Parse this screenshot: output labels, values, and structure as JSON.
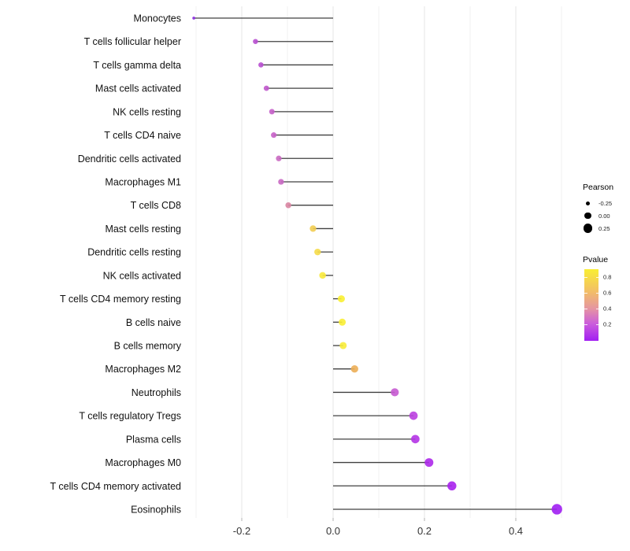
{
  "chart_data": {
    "type": "scatter",
    "variant": "horizontal-lollipop",
    "title": "",
    "xlabel": "",
    "ylabel": "",
    "xlim": [
      -0.33,
      0.52
    ],
    "x_major_ticks": [
      -0.2,
      0.0,
      0.2,
      0.4
    ],
    "x_major_tick_labels": [
      "-0.2",
      "0.0",
      "0.2",
      "0.4"
    ],
    "x_minor_ticks": [
      -0.3,
      -0.1,
      0.1,
      0.3,
      0.5
    ],
    "baseline_x": 0.0,
    "grid": true,
    "legend_position": "right",
    "points": [
      {
        "label": "Monocytes",
        "pearson": -0.305,
        "pvalue": 0.04,
        "color": "#8b2be0"
      },
      {
        "label": "T cells follicular helper",
        "pearson": -0.17,
        "pvalue": 0.27,
        "color": "#b84fd0"
      },
      {
        "label": "T cells gamma delta",
        "pearson": -0.158,
        "pvalue": 0.27,
        "color": "#b84fd0"
      },
      {
        "label": "Mast cells activated",
        "pearson": -0.146,
        "pvalue": 0.3,
        "color": "#c058cc"
      },
      {
        "label": "NK cells resting",
        "pearson": -0.134,
        "pvalue": 0.33,
        "color": "#c55fc9"
      },
      {
        "label": "T cells CD4 naive",
        "pearson": -0.13,
        "pvalue": 0.34,
        "color": "#c762c8"
      },
      {
        "label": "Dendritic cells activated",
        "pearson": -0.119,
        "pvalue": 0.36,
        "color": "#ca6ac2"
      },
      {
        "label": "Macrophages M1",
        "pearson": -0.114,
        "pvalue": 0.36,
        "color": "#c968c3"
      },
      {
        "label": "T cells CD8",
        "pearson": -0.098,
        "pvalue": 0.47,
        "color": "#d985a2"
      },
      {
        "label": "Mast cells resting",
        "pearson": -0.044,
        "pvalue": 0.66,
        "color": "#f2cd52"
      },
      {
        "label": "Dendritic cells resting",
        "pearson": -0.034,
        "pvalue": 0.72,
        "color": "#f5dc49"
      },
      {
        "label": "NK cells activated",
        "pearson": -0.023,
        "pvalue": 0.8,
        "color": "#f8e93c"
      },
      {
        "label": "T cells CD4 memory resting",
        "pearson": 0.018,
        "pvalue": 0.86,
        "color": "#f9ef32"
      },
      {
        "label": "B cells naive",
        "pearson": 0.02,
        "pvalue": 0.85,
        "color": "#f9ee34"
      },
      {
        "label": "B cells memory",
        "pearson": 0.022,
        "pvalue": 0.83,
        "color": "#f8ec3a"
      },
      {
        "label": "Macrophages M2",
        "pearson": 0.047,
        "pvalue": 0.56,
        "color": "#ecae57"
      },
      {
        "label": "Neutrophils",
        "pearson": 0.135,
        "pvalue": 0.29,
        "color": "#c75ad2"
      },
      {
        "label": "T cells regulatory  Tregs",
        "pearson": 0.176,
        "pvalue": 0.17,
        "color": "#bb40e0"
      },
      {
        "label": "Plasma cells",
        "pearson": 0.18,
        "pvalue": 0.14,
        "color": "#b434e6"
      },
      {
        "label": "Macrophages M0",
        "pearson": 0.21,
        "pvalue": 0.11,
        "color": "#ad28ea"
      },
      {
        "label": "T cells CD4 memory activated",
        "pearson": 0.26,
        "pvalue": 0.09,
        "color": "#a821ee"
      },
      {
        "label": "Eosinophils",
        "pearson": 0.49,
        "pvalue": 0.04,
        "color": "#a01ef2"
      }
    ],
    "legend": {
      "size": {
        "title": "Pearson",
        "dot_color": "#000000",
        "entries": [
          {
            "label": "-0.25",
            "value": -0.25
          },
          {
            "label": "0.00",
            "value": 0.0
          },
          {
            "label": "0.25",
            "value": 0.25
          }
        ]
      },
      "colorbar": {
        "title": "Pvalue",
        "tick_labels": [
          "0.8",
          "0.6",
          "0.4",
          "0.2"
        ],
        "gradient_top_to_bottom": [
          "#f9ee33",
          "#f2bd68",
          "#e595a2",
          "#cb5ddb",
          "#a21ff2"
        ]
      }
    }
  },
  "colors": {
    "background": "#ffffff",
    "stem": "#404040",
    "grid_major": "#e4e4e4",
    "grid_minor": "#f2f2f2",
    "axis_tick": "#b3b3b3",
    "axis_text": "#333333",
    "label_text": "#111111"
  }
}
